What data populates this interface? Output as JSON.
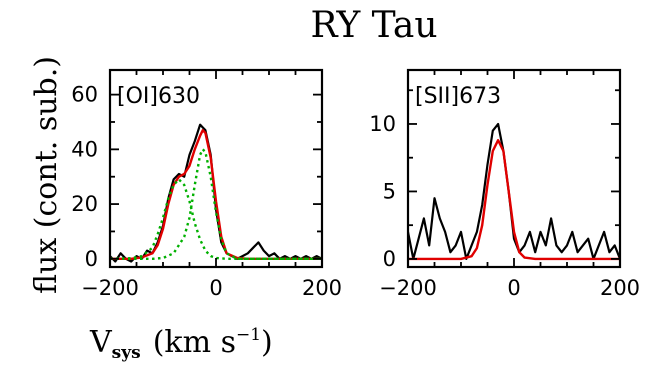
{
  "figure": {
    "title": "RY Tau",
    "ylabel": "flux (cont. sub.)",
    "xlabel_main": "V",
    "xlabel_sub": "sys",
    "xlabel_units": "(km s",
    "xlabel_sup": "−1",
    "xlabel_close": ")"
  },
  "colors": {
    "observed": "#000000",
    "fit": "#e00000",
    "components": "#00b000"
  },
  "chart_data": [
    {
      "type": "line",
      "panel_label": "[OI]630",
      "xlim": [
        -200,
        200
      ],
      "ylim": [
        -3,
        69
      ],
      "xticks": [
        -200,
        0,
        200
      ],
      "xtick_labels": [
        "−200",
        "0",
        "200"
      ],
      "yticks": [
        0,
        20,
        40,
        60
      ],
      "ytick_labels": [
        "0",
        "20",
        "40",
        "60"
      ],
      "series": [
        {
          "role": "observed",
          "x": [
            -200,
            -190,
            -180,
            -170,
            -160,
            -150,
            -140,
            -130,
            -120,
            -110,
            -100,
            -90,
            -80,
            -70,
            -60,
            -50,
            -40,
            -30,
            -20,
            -10,
            0,
            10,
            20,
            30,
            40,
            50,
            60,
            70,
            80,
            90,
            100,
            110,
            120,
            130,
            140,
            150,
            160,
            170,
            180,
            190,
            200
          ],
          "y": [
            1,
            -1,
            2,
            0,
            -1,
            1,
            0,
            3,
            2,
            6,
            12,
            22,
            29,
            31,
            30,
            38,
            43,
            49,
            47,
            38,
            18,
            6,
            2,
            1,
            0,
            1,
            2,
            4,
            6,
            3,
            1,
            2,
            0,
            1,
            0,
            1,
            0,
            1,
            0,
            1,
            0
          ]
        },
        {
          "role": "fit",
          "x": [
            -200,
            -180,
            -160,
            -140,
            -120,
            -110,
            -100,
            -90,
            -80,
            -70,
            -60,
            -50,
            -40,
            -30,
            -25,
            -20,
            -10,
            0,
            10,
            20,
            40,
            60,
            100,
            150,
            200
          ],
          "y": [
            0,
            0,
            0,
            0.5,
            2,
            5,
            11,
            20,
            27,
            30,
            31,
            34,
            40,
            45,
            47,
            46,
            37,
            21,
            8,
            2,
            0.3,
            0,
            0,
            0,
            0
          ]
        },
        {
          "role": "component",
          "x": [
            -200,
            -160,
            -140,
            -120,
            -110,
            -100,
            -90,
            -80,
            -70,
            -60,
            -50,
            -40,
            -30,
            -20,
            -10,
            0,
            20,
            60,
            100,
            200
          ],
          "y": [
            0,
            0.2,
            1,
            4,
            9,
            15,
            22,
            27,
            29,
            27,
            21,
            13,
            7,
            3,
            1,
            0.3,
            0,
            0,
            0,
            0
          ]
        },
        {
          "role": "component",
          "x": [
            -200,
            -120,
            -100,
            -80,
            -60,
            -50,
            -40,
            -30,
            -25,
            -20,
            -10,
            0,
            10,
            20,
            40,
            80,
            200
          ],
          "y": [
            0,
            0,
            0.3,
            2,
            8,
            15,
            27,
            38,
            40,
            39,
            30,
            17,
            7,
            2,
            0,
            0,
            0
          ]
        }
      ]
    },
    {
      "type": "line",
      "panel_label": "[SII]673",
      "xlim": [
        -200,
        200
      ],
      "ylim": [
        -0.6,
        14
      ],
      "xticks": [
        -200,
        0,
        200
      ],
      "xtick_labels": [
        "−200",
        "0",
        "200"
      ],
      "yticks": [
        0,
        5,
        10
      ],
      "ytick_labels": [
        "0",
        "5",
        "10"
      ],
      "series": [
        {
          "role": "observed",
          "x": [
            -200,
            -190,
            -180,
            -170,
            -160,
            -150,
            -140,
            -130,
            -120,
            -110,
            -100,
            -90,
            -80,
            -70,
            -60,
            -50,
            -40,
            -30,
            -20,
            -10,
            0,
            10,
            20,
            30,
            40,
            50,
            60,
            70,
            80,
            90,
            100,
            110,
            120,
            130,
            140,
            150,
            160,
            170,
            180,
            190,
            200
          ],
          "y": [
            2,
            0,
            1.5,
            3,
            1,
            4.5,
            3,
            2,
            0.5,
            1,
            2,
            0,
            1,
            2,
            4,
            7,
            9.5,
            10,
            8,
            5,
            1.5,
            0.5,
            1,
            2,
            0.5,
            2,
            1,
            3,
            1,
            0.5,
            1,
            2,
            0.5,
            1,
            1.5,
            0,
            1,
            2,
            0.5,
            1,
            0
          ]
        },
        {
          "role": "fit",
          "x": [
            -200,
            -100,
            -80,
            -70,
            -60,
            -50,
            -40,
            -30,
            -20,
            -10,
            0,
            10,
            20,
            40,
            100,
            200
          ],
          "y": [
            0,
            0,
            0.2,
            0.8,
            2.5,
            5.5,
            8,
            8.8,
            8,
            5,
            2,
            0.5,
            0.1,
            0,
            0,
            0
          ]
        }
      ]
    }
  ]
}
